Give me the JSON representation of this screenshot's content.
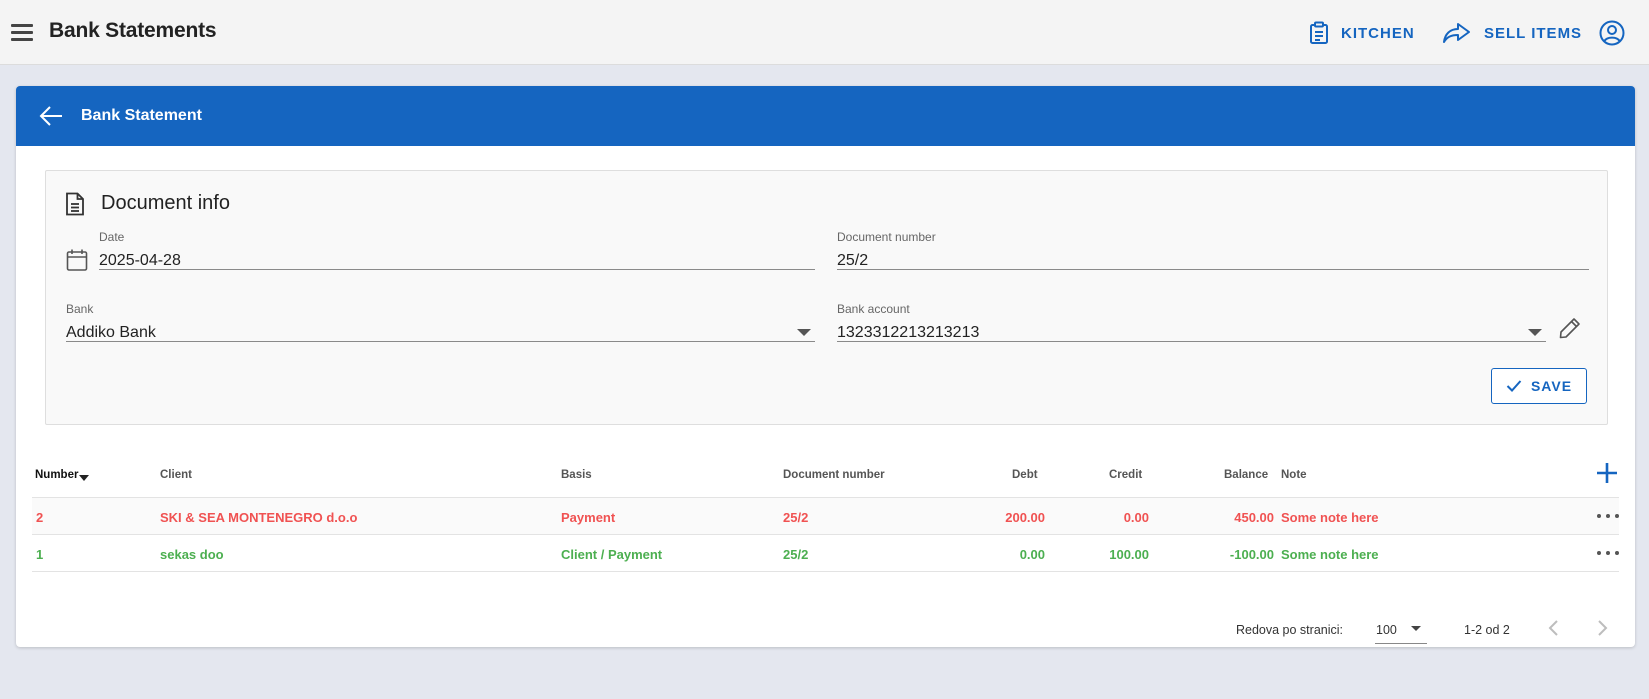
{
  "app": {
    "title": "Bank Statements",
    "kitchen_label": "KITCHEN",
    "sell_label": "SELL ITEMS",
    "icons": {
      "menu": "menu-icon",
      "kitchen": "clipboard-icon",
      "sell": "share-arrow-icon",
      "account": "account-circle-icon"
    }
  },
  "card": {
    "title": "Bank Statement"
  },
  "document_info": {
    "title": "Document info",
    "date": {
      "label": "Date",
      "value": "2025-04-28"
    },
    "document_number": {
      "label": "Document number",
      "value": "25/2"
    },
    "bank": {
      "label": "Bank",
      "value": "Addiko Bank"
    },
    "bank_account": {
      "label": "Bank account",
      "value": "1323312213213213"
    },
    "save_label": "SAVE"
  },
  "table": {
    "columns": [
      "Number",
      "Client",
      "Basis",
      "Document number",
      "Debt",
      "Credit",
      "Balance",
      "Note"
    ],
    "sorted_column": "Number",
    "rows": [
      {
        "number": "2",
        "client": "SKI & SEA MONTENEGRO d.o.o",
        "basis": "Payment",
        "document_number": "25/2",
        "debt": "200.00",
        "credit": "0.00",
        "balance": "450.00",
        "note": "Some note here",
        "color": "#f05252"
      },
      {
        "number": "1",
        "client": "sekas doo",
        "basis": "Client / Payment",
        "document_number": "25/2",
        "debt": "0.00",
        "credit": "100.00",
        "balance": "-100.00",
        "note": "Some note here",
        "color": "#4caf50"
      }
    ]
  },
  "pagination": {
    "rows_per_page_label": "Redova po stranici:",
    "rows_per_page": "100",
    "range": "1-2 od 2"
  },
  "colors": {
    "primary": "#1565c0",
    "debit_row": "#f05252",
    "credit_row": "#4caf50"
  }
}
